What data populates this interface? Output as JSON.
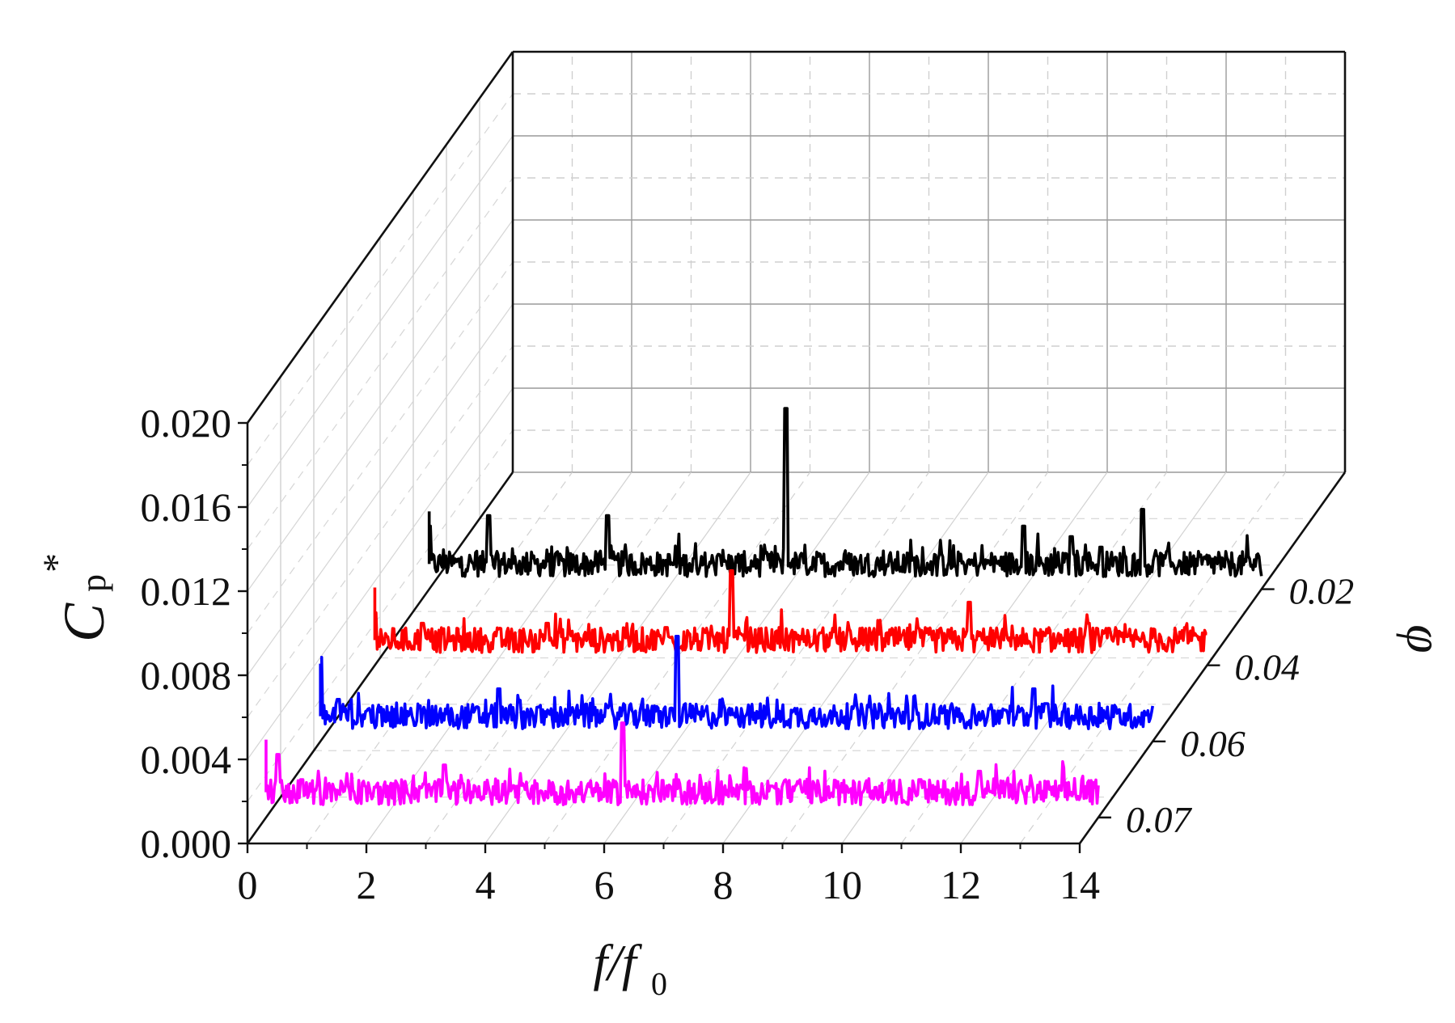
{
  "chart_data": {
    "type": "line",
    "title": "",
    "xlabel": {
      "main": "f/f",
      "sub": "0"
    },
    "ylabel": {
      "main": "C",
      "sub": "p",
      "sup": "*"
    },
    "zlabel": "φ",
    "xlim": [
      0,
      14
    ],
    "ylim": [
      0.0,
      0.02
    ],
    "x_ticks": [
      "0",
      "2",
      "4",
      "6",
      "8",
      "10",
      "12",
      "14"
    ],
    "y_ticks": [
      "0.000",
      "0.004",
      "0.008",
      "0.012",
      "0.016",
      "0.020"
    ],
    "depth_ticks": [
      "0.02",
      "0.04",
      "0.06",
      "0.07"
    ],
    "grid": true,
    "series": [
      {
        "phi": 0.02,
        "color": "#000000",
        "baseline": 0.0012,
        "noise": 0.0006,
        "peaks": [
          [
            0.0,
            0.003
          ],
          [
            1.0,
            0.0035
          ],
          [
            3.0,
            0.0035
          ],
          [
            6.0,
            0.0086
          ],
          [
            10.0,
            0.003
          ],
          [
            10.8,
            0.0025
          ],
          [
            11.3,
            0.002
          ],
          [
            12.0,
            0.0038
          ]
        ]
      },
      {
        "phi": 0.04,
        "color": "#ff0000",
        "baseline": 0.0012,
        "noise": 0.0006,
        "peaks": [
          [
            0.0,
            0.0025
          ],
          [
            0.8,
            0.002
          ],
          [
            2.9,
            0.002
          ],
          [
            4.9,
            0.0018
          ],
          [
            6.0,
            0.0045
          ],
          [
            10.0,
            0.003
          ],
          [
            12.0,
            0.002
          ],
          [
            14.0,
            0.0015
          ]
        ]
      },
      {
        "phi": 0.06,
        "color": "#0000ff",
        "baseline": 0.0012,
        "noise": 0.0006,
        "peaks": [
          [
            0.0,
            0.004
          ],
          [
            0.3,
            0.002
          ],
          [
            3.0,
            0.0025
          ],
          [
            6.0,
            0.005
          ],
          [
            12.0,
            0.0025
          ],
          [
            12.2,
            0.0018
          ]
        ]
      },
      {
        "phi": 0.07,
        "color": "#ff00ff",
        "baseline": 0.0012,
        "noise": 0.0006,
        "peaks": [
          [
            0.2,
            0.003
          ],
          [
            0.6,
            0.0018
          ],
          [
            3.0,
            0.0025
          ],
          [
            6.0,
            0.0045
          ],
          [
            8.5,
            0.0015
          ],
          [
            9.0,
            0.0012
          ],
          [
            9.7,
            0.0012
          ],
          [
            11.0,
            0.0018
          ],
          [
            12.0,
            0.0022
          ]
        ]
      }
    ]
  }
}
